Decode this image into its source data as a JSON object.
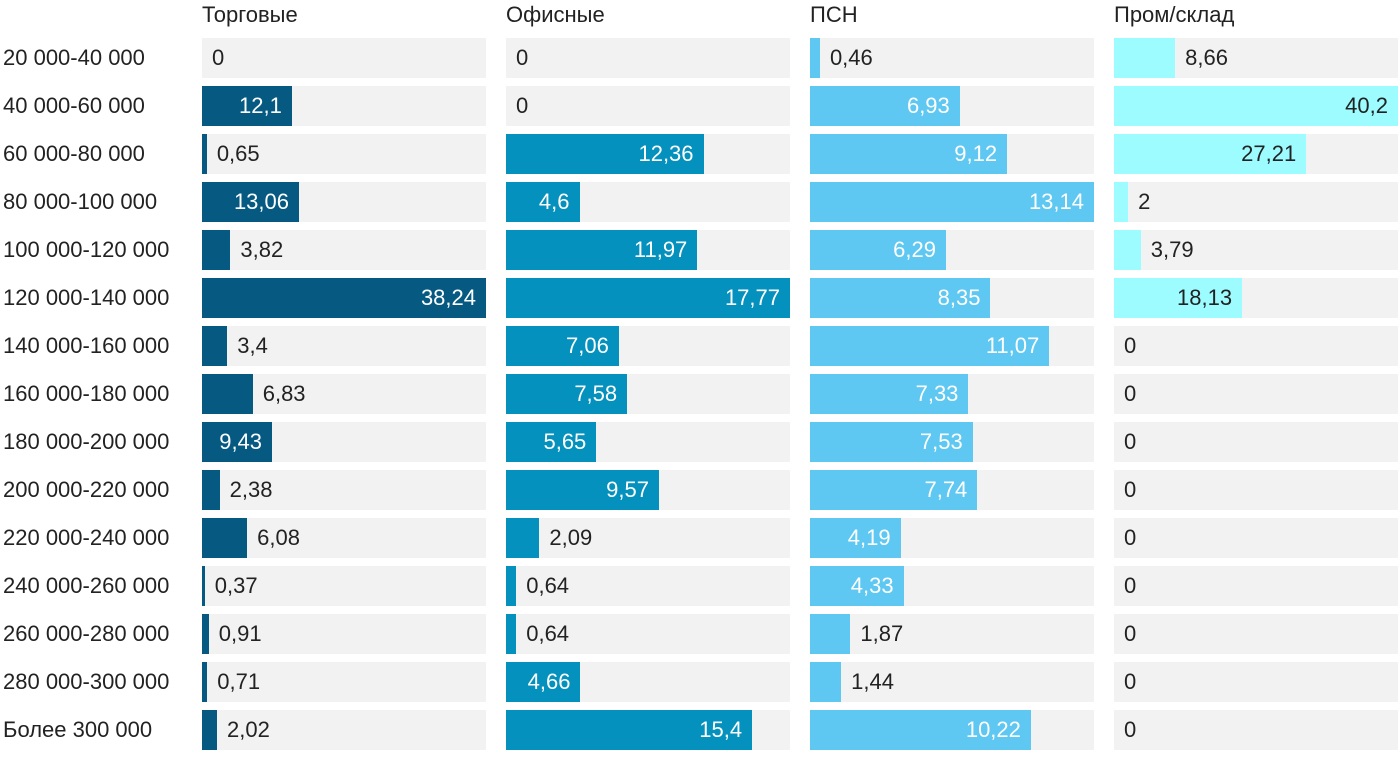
{
  "chart_data": {
    "type": "bar",
    "orientation": "horizontal",
    "layout": "small-multiples",
    "categories": [
      "20 000-40 000",
      "40 000-60 000",
      "60 000-80 000",
      "80 000-100 000",
      "100 000-120 000",
      "120 000-140 000",
      "140 000-160 000",
      "160 000-180 000",
      "180 000-200 000",
      "200 000-220 000",
      "220 000-240 000",
      "240 000-260 000",
      "260 000-280 000",
      "280 000-300 000",
      "Более 300 000"
    ],
    "series": [
      {
        "name": "Торговые",
        "color": "#065a82",
        "values": [
          0,
          12.1,
          0.65,
          13.06,
          3.82,
          38.24,
          3.4,
          6.83,
          9.43,
          2.38,
          6.08,
          0.37,
          0.91,
          0.71,
          2.02
        ],
        "labels": [
          "0",
          "12,1",
          "0,65",
          "13,06",
          "3,82",
          "38,24",
          "3,4",
          "6,83",
          "9,43",
          "2,38",
          "6,08",
          "0,37",
          "0,91",
          "0,71",
          "2,02"
        ]
      },
      {
        "name": "Офисные",
        "color": "#0591bd",
        "values": [
          0,
          0,
          12.36,
          4.6,
          11.97,
          17.77,
          7.06,
          7.58,
          5.65,
          9.57,
          2.09,
          0.64,
          0.64,
          4.66,
          15.4
        ],
        "labels": [
          "0",
          "0",
          "12,36",
          "4,6",
          "11,97",
          "17,77",
          "7,06",
          "7,58",
          "5,65",
          "9,57",
          "2,09",
          "0,64",
          "0,64",
          "4,66",
          "15,4"
        ]
      },
      {
        "name": "ПСН",
        "color": "#5ec8f2",
        "values": [
          0.46,
          6.93,
          9.12,
          13.14,
          6.29,
          8.35,
          11.07,
          7.33,
          7.53,
          7.74,
          4.19,
          4.33,
          1.87,
          1.44,
          10.22
        ],
        "labels": [
          "0,46",
          "6,93",
          "9,12",
          "13,14",
          "6,29",
          "8,35",
          "11,07",
          "7,33",
          "7,53",
          "7,74",
          "4,19",
          "4,33",
          "1,87",
          "1,44",
          "10,22"
        ]
      },
      {
        "name": "Пром/склад",
        "color": "#9cfcff",
        "values": [
          8.66,
          40.2,
          27.21,
          2,
          3.79,
          18.13,
          0,
          0,
          0,
          0,
          0,
          0,
          0,
          0,
          0
        ],
        "labels": [
          "8,66",
          "40,2",
          "27,21",
          "2",
          "3,79",
          "18,13",
          "0",
          "0",
          "0",
          "0",
          "0",
          "0",
          "0",
          "0",
          "0"
        ]
      }
    ],
    "grid": false,
    "legend": "none"
  }
}
